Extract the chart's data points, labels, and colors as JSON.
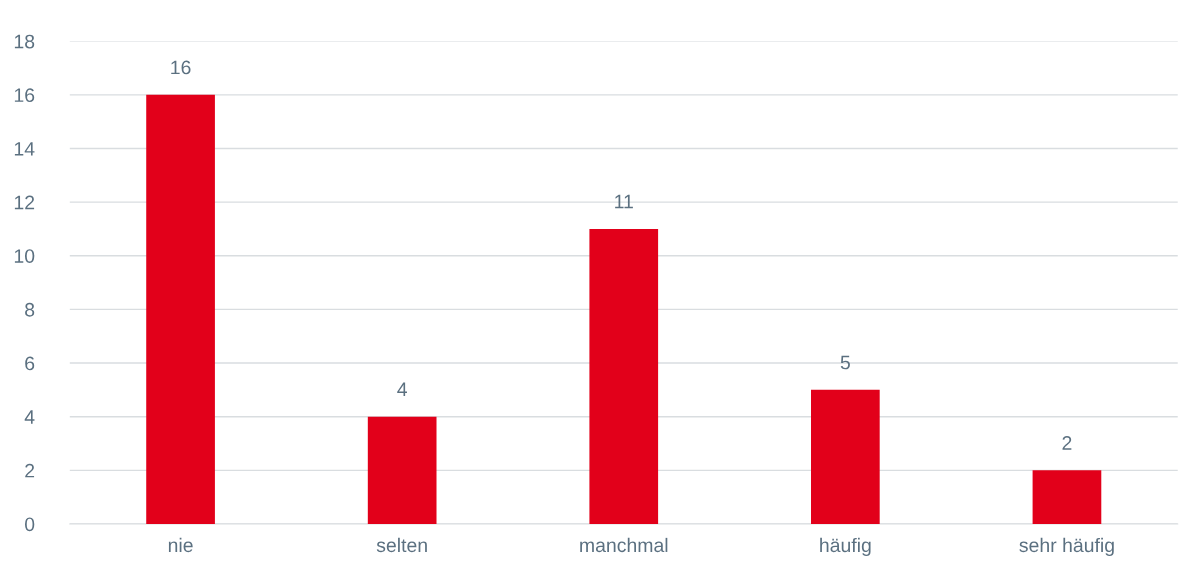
{
  "chart_data": {
    "type": "bar",
    "categories": [
      "nie",
      "selten",
      "manchmal",
      "häufig",
      "sehr häufig"
    ],
    "values": [
      16,
      4,
      11,
      5,
      2
    ],
    "color": "#e2001a",
    "ylim": [
      0,
      18
    ],
    "yticks": [
      0,
      2,
      4,
      6,
      8,
      10,
      12,
      14,
      16,
      18
    ],
    "grid": "y",
    "data_labels": true
  }
}
